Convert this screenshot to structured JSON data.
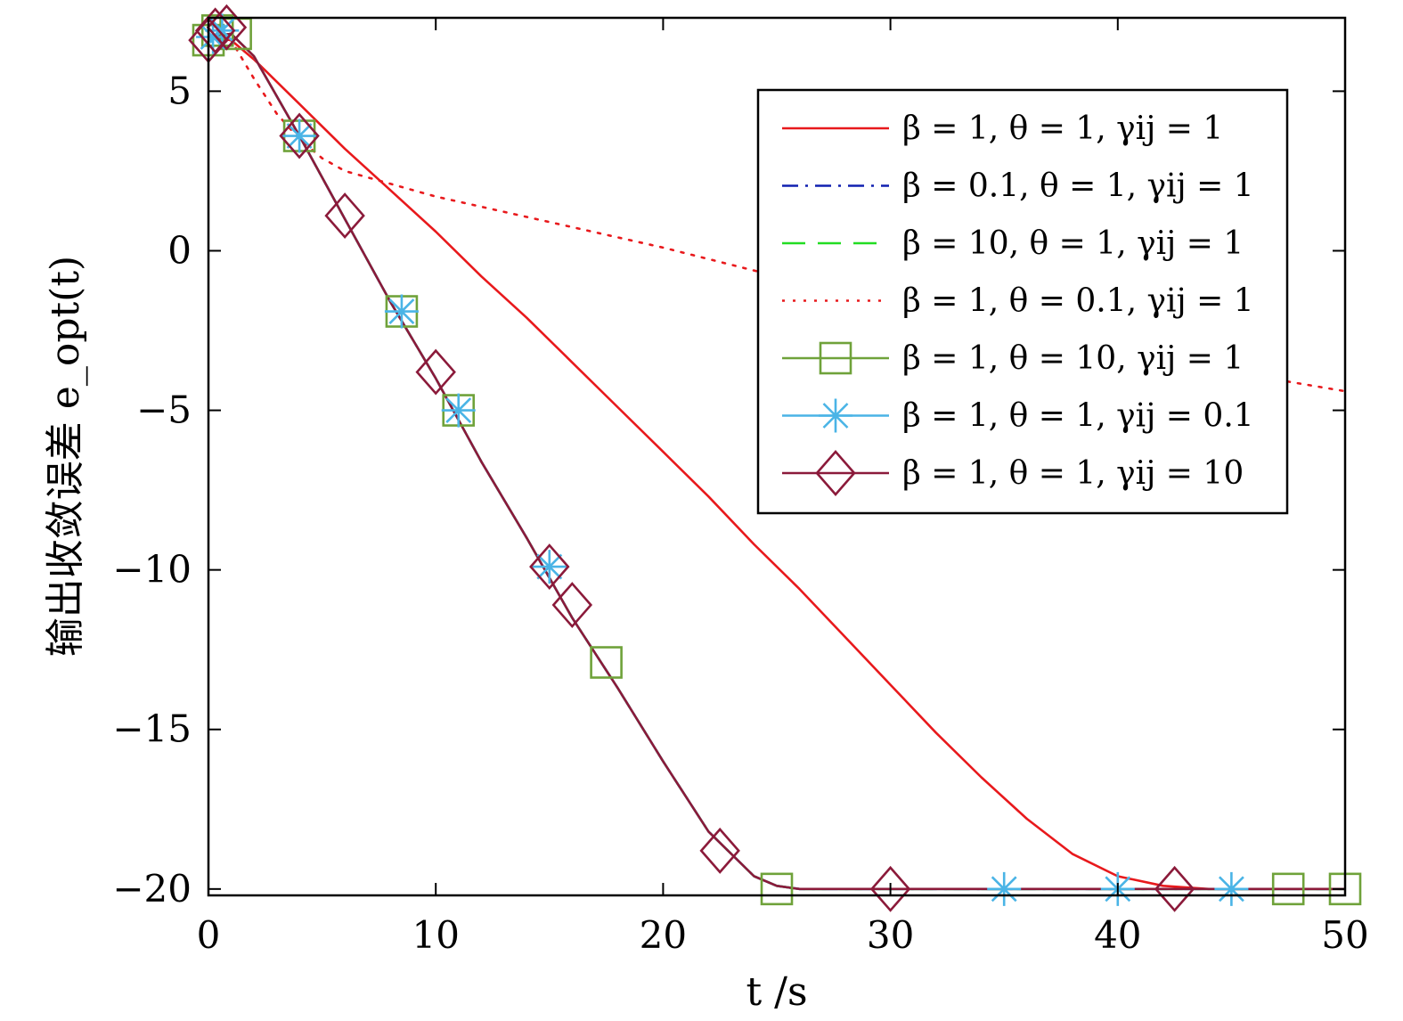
{
  "chart_data": {
    "type": "line",
    "title": "",
    "xlabel": "t /s",
    "ylabel": "输出收敛误差 e_opt(t)",
    "xlim": [
      0,
      50
    ],
    "ylim": [
      -20.2,
      7.3
    ],
    "xticks": [
      0,
      10,
      20,
      30,
      40,
      50
    ],
    "yticks": [
      5,
      0,
      -5,
      -10,
      -15,
      -20
    ],
    "xtick_labels": [
      "0",
      "10",
      "20",
      "30",
      "40",
      "50"
    ],
    "ytick_labels": [
      "5",
      "0",
      "−5",
      "−10",
      "−15",
      "−20"
    ],
    "grid": false,
    "legend_position": "top-right",
    "series": [
      {
        "name": "β = 1, θ = 1, γij = 1",
        "color": "#e8191c",
        "style": "solid",
        "marker": "none",
        "x": [
          0,
          1,
          2,
          4,
          6,
          8,
          10,
          12,
          14,
          16,
          18,
          20,
          22,
          24,
          26,
          28,
          30,
          32,
          34,
          36,
          38,
          40,
          42,
          44,
          46,
          48,
          50
        ],
        "y": [
          6.7,
          6.6,
          6.0,
          4.6,
          3.2,
          1.9,
          0.6,
          -0.8,
          -2.1,
          -3.5,
          -4.9,
          -6.3,
          -7.7,
          -9.2,
          -10.6,
          -12.1,
          -13.6,
          -15.1,
          -16.5,
          -17.8,
          -18.9,
          -19.6,
          -19.9,
          -20.0,
          -20.0,
          -20.0,
          -20.0
        ]
      },
      {
        "name": "β = 0.1, θ = 1, γij = 1",
        "color": "#1020b0",
        "style": "dashdot",
        "marker": "none",
        "x": [
          0,
          1,
          2,
          4,
          6,
          8,
          10,
          12,
          14,
          16,
          18,
          20,
          22,
          24,
          25,
          26,
          28,
          30,
          35,
          40,
          45,
          50
        ],
        "y": [
          6.7,
          6.8,
          6.1,
          3.6,
          1.0,
          -1.6,
          -4.0,
          -6.6,
          -9.0,
          -11.5,
          -13.7,
          -16.0,
          -18.2,
          -19.6,
          -19.9,
          -20.0,
          -20.0,
          -20.0,
          -20.0,
          -20.0,
          -20.0,
          -20.0
        ]
      },
      {
        "name": "β = 10, θ = 1, γij = 1",
        "color": "#22dd22",
        "style": "dashed",
        "marker": "none",
        "x": [
          0,
          1,
          2,
          4,
          6,
          8,
          10,
          12,
          14,
          16,
          18,
          20,
          22,
          24,
          25,
          26,
          28,
          30,
          35,
          40,
          45,
          50
        ],
        "y": [
          6.7,
          6.8,
          6.1,
          3.6,
          1.0,
          -1.6,
          -4.0,
          -6.6,
          -9.0,
          -11.5,
          -13.7,
          -16.0,
          -18.2,
          -19.6,
          -19.9,
          -20.0,
          -20.0,
          -20.0,
          -20.0,
          -20.0,
          -20.0,
          -20.0
        ]
      },
      {
        "name": "β = 1, θ = 0.1, γij = 1",
        "color": "#e8191c",
        "style": "dotted",
        "marker": "none",
        "x": [
          0,
          1,
          2,
          3,
          4,
          5,
          6,
          8,
          10,
          15,
          20,
          25,
          30,
          35,
          40,
          45,
          50
        ],
        "y": [
          6.7,
          6.6,
          5.4,
          4.3,
          3.5,
          2.9,
          2.5,
          2.1,
          1.7,
          0.9,
          0.1,
          -0.8,
          -1.6,
          -2.3,
          -3.1,
          -3.8,
          -4.4
        ]
      },
      {
        "name": "β = 1, θ = 10, γij = 1",
        "color": "#6fa23a",
        "style": "solid",
        "marker": "square",
        "x": [
          0,
          1,
          2,
          4,
          6,
          8,
          10,
          12,
          14,
          16,
          18,
          20,
          22,
          24,
          25,
          26,
          28,
          30,
          35,
          40,
          45,
          50
        ],
        "y": [
          6.7,
          6.8,
          6.1,
          3.6,
          1.0,
          -1.6,
          -4.0,
          -6.6,
          -9.0,
          -11.5,
          -13.7,
          -16.0,
          -18.2,
          -19.6,
          -19.9,
          -20.0,
          -20.0,
          -20.0,
          -20.0,
          -20.0,
          -20.0,
          -20.0
        ],
        "marker_x": [
          0,
          0.4,
          1.2,
          4,
          8.5,
          11,
          17.5,
          25,
          47.5,
          50
        ],
        "marker_y": [
          6.6,
          6.9,
          6.8,
          3.6,
          -1.9,
          -5.0,
          -12.9,
          -20.0,
          -20.0,
          -20.0
        ]
      },
      {
        "name": "β = 1, θ = 1, γij = 0.1",
        "color": "#4ab4e6",
        "style": "solid",
        "marker": "asterisk",
        "x": [
          0,
          1,
          2,
          4,
          6,
          8,
          10,
          12,
          14,
          16,
          18,
          20,
          22,
          24,
          25,
          26,
          28,
          30,
          35,
          40,
          45,
          50
        ],
        "y": [
          6.7,
          6.8,
          6.1,
          3.6,
          1.0,
          -1.6,
          -4.0,
          -6.6,
          -9.0,
          -11.5,
          -13.7,
          -16.0,
          -18.2,
          -19.6,
          -19.9,
          -20.0,
          -20.0,
          -20.0,
          -20.0,
          -20.0,
          -20.0,
          -20.0
        ],
        "marker_x": [
          0.2,
          0.6,
          4,
          8.5,
          11,
          15,
          35,
          40,
          45
        ],
        "marker_y": [
          6.7,
          6.9,
          3.6,
          -1.9,
          -5.0,
          -9.9,
          -20.0,
          -20.0,
          -20.0
        ]
      },
      {
        "name": "β = 1, θ = 1, γij = 10",
        "color": "#8b1a3a",
        "style": "solid",
        "marker": "diamond",
        "x": [
          0,
          1,
          2,
          4,
          6,
          8,
          10,
          12,
          14,
          16,
          18,
          20,
          22,
          24,
          25,
          26,
          28,
          30,
          35,
          40,
          45,
          50
        ],
        "y": [
          6.7,
          6.8,
          6.1,
          3.6,
          1.0,
          -1.6,
          -4.0,
          -6.6,
          -9.0,
          -11.5,
          -13.7,
          -16.0,
          -18.2,
          -19.6,
          -19.9,
          -20.0,
          -20.0,
          -20.0,
          -20.0,
          -20.0,
          -20.0,
          -20.0
        ],
        "marker_x": [
          0,
          0.3,
          0.8,
          4,
          6,
          10,
          15,
          16,
          22.5,
          30,
          42.5
        ],
        "marker_y": [
          6.6,
          6.9,
          7.0,
          3.6,
          1.1,
          -3.8,
          -9.9,
          -11.1,
          -18.8,
          -20.0,
          -20.0
        ]
      }
    ]
  }
}
